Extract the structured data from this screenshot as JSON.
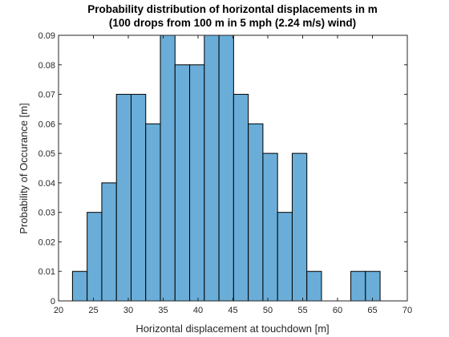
{
  "chart_data": {
    "type": "bar",
    "title": "Probability distribution of horizontal displacements in m",
    "subtitle": "(100 drops from 100 m in 5 mph (2.24 m/s) wind)",
    "xlabel": "Horizontal displacement at touchdown [m]",
    "ylabel": "Probability of Occurance [m]",
    "xlim": [
      20,
      70
    ],
    "ylim": [
      0,
      0.09
    ],
    "xticks": [
      "20",
      "25",
      "30",
      "35",
      "40",
      "45",
      "50",
      "55",
      "60",
      "65",
      "70"
    ],
    "yticks": [
      "0",
      "0.01",
      "0.02",
      "0.03",
      "0.04",
      "0.05",
      "0.06",
      "0.07",
      "0.08",
      "0.09"
    ],
    "bin_edges": [
      22,
      24.1,
      26.2,
      28.3,
      30.4,
      32.5,
      34.6,
      36.7,
      38.8,
      40.9,
      43.0,
      45.1,
      47.2,
      49.3,
      51.4,
      53.5,
      55.6,
      57.7,
      59.8,
      61.9,
      64.0,
      66.1,
      68.2
    ],
    "values": [
      0.01,
      0.03,
      0.04,
      0.07,
      0.07,
      0.06,
      0.09,
      0.08,
      0.08,
      0.09,
      0.09,
      0.07,
      0.06,
      0.05,
      0.03,
      0.05,
      0.01,
      0,
      0,
      0.01,
      0.01,
      0
    ],
    "bar_color": "#6AADD8",
    "edge_color": "#000000",
    "grid": false
  }
}
